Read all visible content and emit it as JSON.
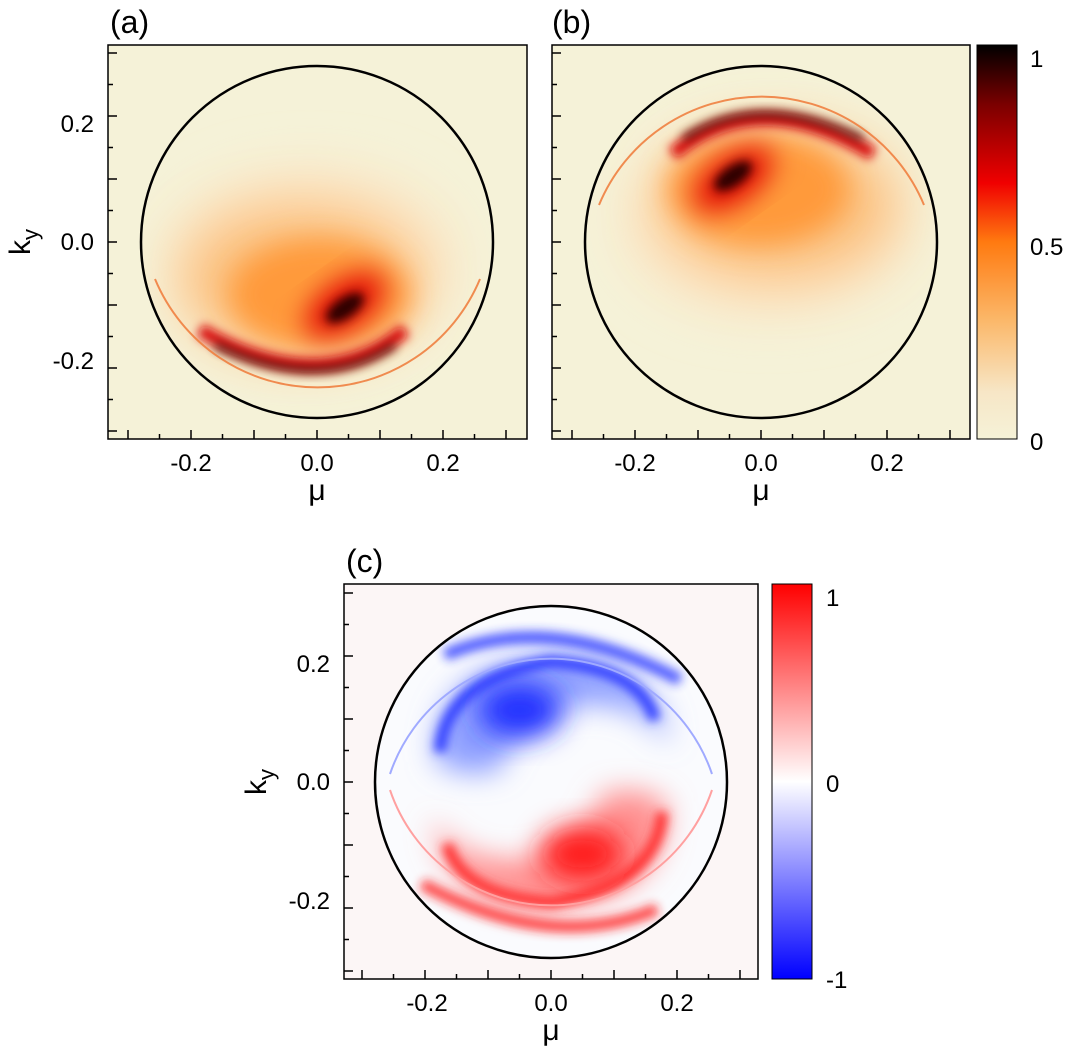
{
  "panels": [
    {
      "id": "a",
      "label": "(a)",
      "xlabel": "μ",
      "ylabel": "k",
      "ylabel_sub": "y",
      "xticks": [
        "-0.2",
        "0.0",
        "0.2"
      ],
      "yticks": [
        "0.2",
        "0.0",
        "-0.2"
      ],
      "colormap": "hot"
    },
    {
      "id": "b",
      "label": "(b)",
      "xlabel": "μ",
      "ylabel": "",
      "ylabel_sub": "",
      "xticks": [
        "-0.2",
        "0.0",
        "0.2"
      ],
      "yticks": [],
      "colormap": "hot"
    },
    {
      "id": "c",
      "label": "(c)",
      "xlabel": "μ",
      "ylabel": "k",
      "ylabel_sub": "y",
      "xticks": [
        "-0.2",
        "0.0",
        "0.2"
      ],
      "yticks": [
        "0.2",
        "0.0",
        "-0.2"
      ],
      "colormap": "bwr"
    }
  ],
  "colorbars": [
    {
      "id": "cb-hot",
      "labels": [
        "1",
        "0.5",
        "0"
      ],
      "colors": [
        "#1a0000",
        "#e60000",
        "#ff8c1a",
        "#fbe3b8",
        "#f5f2d8"
      ]
    },
    {
      "id": "cb-bwr",
      "labels": [
        "1",
        "0",
        "-1"
      ],
      "colors": [
        "#ff0000",
        "#ffffff",
        "#0000ff"
      ]
    }
  ],
  "chart_data": [
    {
      "type": "heatmap",
      "title": "(a)",
      "xlabel": "μ",
      "ylabel": "k_y",
      "xlim": [
        -0.33,
        0.33
      ],
      "ylim": [
        -0.33,
        0.33
      ],
      "xticks": [
        -0.2,
        0.0,
        0.2
      ],
      "yticks": [
        -0.2,
        0.0,
        0.2
      ],
      "zlim": [
        0,
        1
      ],
      "boundary_circle_radius": 0.28,
      "features": [
        {
          "kind": "dark arc",
          "center": [
            0.0,
            -0.21
          ],
          "value": 1.0
        },
        {
          "kind": "peak",
          "center": [
            0.04,
            -0.12
          ],
          "value": 1.0
        },
        {
          "kind": "diffuse blob",
          "center": [
            -0.01,
            -0.05
          ],
          "value": 0.5
        },
        {
          "kind": "thin ring",
          "radius": 0.26,
          "side": "bottom",
          "value": 0.6
        }
      ]
    },
    {
      "type": "heatmap",
      "title": "(b)",
      "xlabel": "μ",
      "ylabel": "k_y",
      "xlim": [
        -0.33,
        0.33
      ],
      "ylim": [
        -0.33,
        0.33
      ],
      "xticks": [
        -0.2,
        0.0,
        0.2
      ],
      "yticks": [],
      "zlim": [
        0,
        1
      ],
      "boundary_circle_radius": 0.28,
      "features": [
        {
          "kind": "dark arc",
          "center": [
            0.0,
            0.21
          ],
          "value": 1.0
        },
        {
          "kind": "peak",
          "center": [
            -0.04,
            0.12
          ],
          "value": 1.0
        },
        {
          "kind": "diffuse blob",
          "center": [
            0.01,
            0.05
          ],
          "value": 0.5
        },
        {
          "kind": "thin ring",
          "radius": 0.26,
          "side": "top",
          "value": 0.6
        }
      ]
    },
    {
      "type": "heatmap",
      "title": "(c)",
      "xlabel": "μ",
      "ylabel": "k_y",
      "xlim": [
        -0.33,
        0.33
      ],
      "ylim": [
        -0.33,
        0.33
      ],
      "xticks": [
        -0.2,
        0.0,
        0.2
      ],
      "yticks": [
        -0.2,
        0.0,
        0.2
      ],
      "zlim": [
        -1,
        1
      ],
      "boundary_circle_radius": 0.28,
      "features": [
        {
          "kind": "negative lobe",
          "center": [
            -0.02,
            0.14
          ],
          "value": -1.0
        },
        {
          "kind": "positive lobe",
          "center": [
            0.02,
            -0.14
          ],
          "value": 1.0
        },
        {
          "kind": "thin ring",
          "radius": 0.26,
          "top_value": -0.5,
          "bottom_value": 0.5
        }
      ]
    }
  ]
}
